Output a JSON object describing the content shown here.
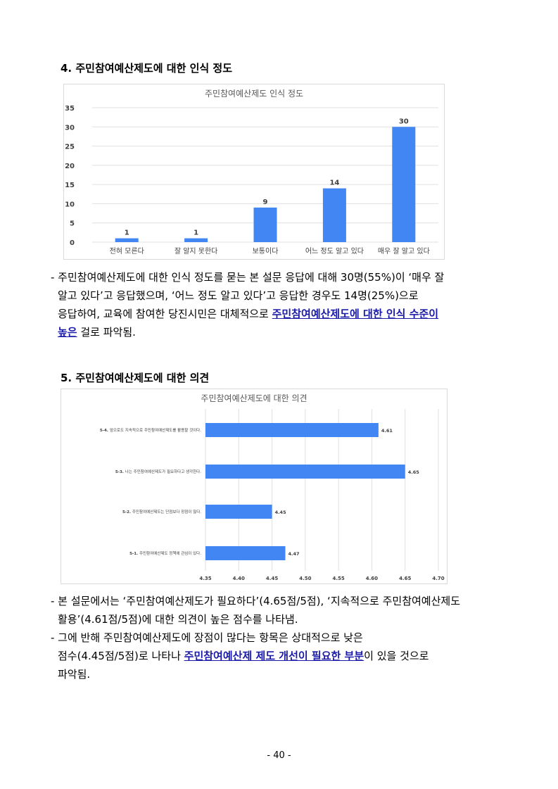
{
  "section4": {
    "heading": "4. 주민참여예산제도에 대한 인식 정도",
    "paragraph": {
      "l1": "- 주민참여예산제도에 대한 인식 정도를 묻는 본 설문 응답에 대해 30명(55%)이 ‘매우 잘",
      "l2": "알고 있다’고 응답했으며, ‘어느 정도 알고 있다’고 응답한 경우도 14명(25%)으로",
      "l3_pre": "응답하여, 교육에 참여한 당진시민은 대체적으로 ",
      "l3_hl": "주민참여예산제도에 대한 인식 수준이",
      "l4_hl": "높은",
      "l4_post": " 걸로 파악됨."
    }
  },
  "section5": {
    "heading": "5. 주민참여예산제도에 대한 의견",
    "paragraph": {
      "b1_l1": "- 본 설문에서는 ‘주민참여예산제도가 필요하다’(4.65점/5점), ‘지속적으로 주민참여예산제도",
      "b1_l2": "활용’(4.61점/5점)에 대한 의견이 높은 점수를 나타냄.",
      "b2_l1": "- 그에 반해 주민참여예산제도에 장점이 많다는 항목은 상대적으로 낮은",
      "b2_l2_pre": "점수(4.45점/5점)로 나타나 ",
      "b2_l2_hl": "주민참여예산제 제도 개선이 필요한 부분",
      "b2_l2_post": "이 있을 것으로",
      "b2_l3": "파악됨."
    }
  },
  "page_number": "- 40 -",
  "colors": {
    "bar": "#4286f4",
    "grid": "#e0e0e0",
    "highlight": "#1a1aa8"
  },
  "chart_data": [
    {
      "type": "bar",
      "title": "주민참여예산제도 인식 정도",
      "categories": [
        "전혀 모른다",
        "잘 알지 못한다",
        "보통이다",
        "어느 정도 알고 있다",
        "매우 잘 알고 있다"
      ],
      "values": [
        1,
        1,
        9,
        14,
        30
      ],
      "yticks": [
        "0",
        "5",
        "10",
        "15",
        "20",
        "25",
        "30",
        "35"
      ],
      "ylim": [
        0,
        35
      ],
      "grid": true
    },
    {
      "type": "bar",
      "orientation": "horizontal",
      "title": "주민참여예산제도에 대한 의견",
      "categories": [
        {
          "id": "5-4.",
          "text": "앞으로도 지속적으로 주민참여예산제도를 활용할 것이다."
        },
        {
          "id": "5-3.",
          "text": "나는 주민참여예산제도가 필요하다고 생각한다."
        },
        {
          "id": "5-2.",
          "text": "주민참여예산제도는 단점보다 장점이 많다."
        },
        {
          "id": "5-1.",
          "text": "주민참여예산제도 정책에 관심이 있다."
        }
      ],
      "values": [
        4.61,
        4.65,
        4.45,
        4.47
      ],
      "value_labels": [
        "4.61",
        "4.65",
        "4.45",
        "4.47"
      ],
      "xticks": [
        "4.35",
        "4.40",
        "4.45",
        "4.50",
        "4.55",
        "4.60",
        "4.65",
        "4.70"
      ],
      "xlim": [
        4.35,
        4.7
      ],
      "grid": true
    }
  ]
}
